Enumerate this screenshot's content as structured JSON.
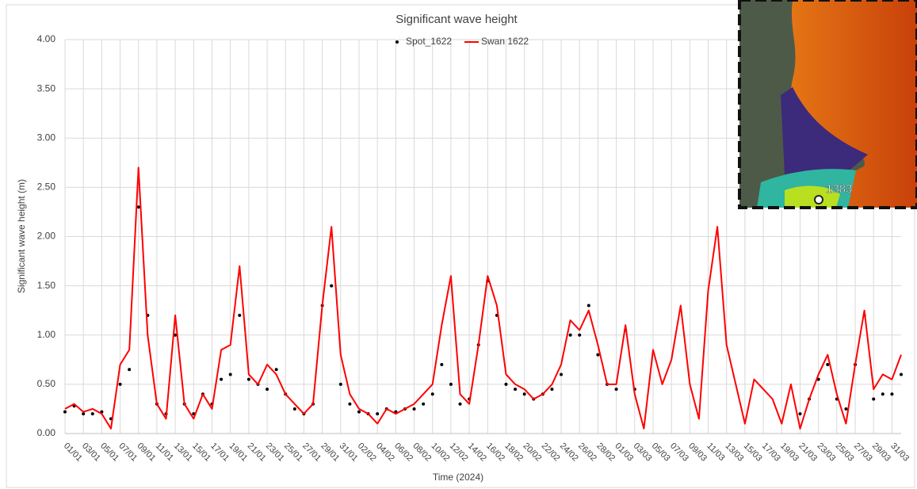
{
  "chart_data": {
    "type": "line",
    "title": "Significant wave height",
    "x_label": "Time (2024)",
    "y_label": "Significant wave height (m)",
    "x": [
      0,
      1,
      2,
      3,
      4,
      5,
      6,
      7,
      8,
      9,
      10,
      11,
      12,
      13,
      14,
      15,
      16,
      17,
      18,
      19,
      20,
      21,
      22,
      23,
      24,
      25,
      26,
      27,
      28,
      29,
      30,
      31,
      32,
      33,
      34,
      35,
      36,
      37,
      38,
      39,
      40,
      41,
      42,
      43,
      44,
      45,
      46,
      47,
      48,
      49,
      50,
      51,
      52,
      53,
      54,
      55,
      56,
      57,
      58,
      59,
      60,
      61,
      62,
      63,
      64,
      65,
      66,
      67,
      68,
      69,
      70,
      71,
      72,
      73,
      74,
      75,
      76,
      77,
      78,
      79,
      80,
      81,
      82,
      83,
      84,
      85,
      86,
      87,
      88,
      89,
      90,
      91
    ],
    "series": [
      {
        "name": "Spot_1622",
        "type": "scatter",
        "color": "#000000",
        "values": [
          0.22,
          0.28,
          0.2,
          0.2,
          0.22,
          0.15,
          0.5,
          0.65,
          2.3,
          1.2,
          0.3,
          0.2,
          1.0,
          0.3,
          0.2,
          0.4,
          0.3,
          0.55,
          0.6,
          1.2,
          0.55,
          0.5,
          0.45,
          0.65,
          0.4,
          0.25,
          0.2,
          0.3,
          1.3,
          1.5,
          0.5,
          0.3,
          0.22,
          0.2,
          0.2,
          0.25,
          0.22,
          0.25,
          0.25,
          0.3,
          0.4,
          0.7,
          0.5,
          0.3,
          0.35,
          0.9,
          1.55,
          1.2,
          0.5,
          0.45,
          0.4,
          0.35,
          0.4,
          0.45,
          0.6,
          1.0,
          1.0,
          1.3,
          0.8,
          0.5,
          0.45,
          1.05,
          0.45,
          null,
          null,
          null,
          null,
          null,
          null,
          null,
          null,
          null,
          null,
          null,
          null,
          null,
          null,
          null,
          null,
          null,
          0.2,
          0.35,
          0.55,
          0.7,
          0.35,
          0.25,
          0.7,
          1.2,
          0.35,
          0.4,
          0.4,
          0.6
        ]
      },
      {
        "name": "Swan 1622",
        "type": "line",
        "color": "#ff0000",
        "values": [
          0.25,
          0.3,
          0.22,
          0.25,
          0.2,
          0.05,
          0.7,
          0.85,
          2.7,
          1.0,
          0.3,
          0.15,
          1.2,
          0.3,
          0.15,
          0.4,
          0.25,
          0.85,
          0.9,
          1.7,
          0.6,
          0.5,
          0.7,
          0.6,
          0.4,
          0.3,
          0.2,
          0.3,
          1.3,
          2.1,
          0.8,
          0.4,
          0.25,
          0.2,
          0.1,
          0.25,
          0.2,
          0.25,
          0.3,
          0.4,
          0.5,
          1.1,
          1.6,
          0.4,
          0.3,
          0.9,
          1.6,
          1.3,
          0.6,
          0.5,
          0.45,
          0.35,
          0.4,
          0.5,
          0.7,
          1.15,
          1.05,
          1.25,
          0.9,
          0.5,
          0.5,
          1.1,
          0.4,
          0.05,
          0.85,
          0.5,
          0.75,
          1.3,
          0.5,
          0.15,
          1.45,
          2.1,
          0.9,
          0.5,
          0.1,
          0.55,
          0.45,
          0.35,
          0.1,
          0.5,
          0.05,
          0.35,
          0.6,
          0.8,
          0.4,
          0.1,
          0.7,
          1.25,
          0.45,
          0.6,
          0.55,
          0.8
        ]
      }
    ],
    "xlim": [
      0,
      91
    ],
    "ylim": [
      0,
      4
    ],
    "xticks": [
      {
        "value": 0,
        "label": "01/01"
      },
      {
        "value": 2,
        "label": "03/01"
      },
      {
        "value": 4,
        "label": "05/01"
      },
      {
        "value": 6,
        "label": "07/01"
      },
      {
        "value": 8,
        "label": "09/01"
      },
      {
        "value": 10,
        "label": "11/01"
      },
      {
        "value": 12,
        "label": "13/01"
      },
      {
        "value": 14,
        "label": "15/01"
      },
      {
        "value": 16,
        "label": "17/01"
      },
      {
        "value": 18,
        "label": "19/01"
      },
      {
        "value": 20,
        "label": "21/01"
      },
      {
        "value": 22,
        "label": "23/01"
      },
      {
        "value": 24,
        "label": "25/01"
      },
      {
        "value": 26,
        "label": "27/01"
      },
      {
        "value": 28,
        "label": "29/01"
      },
      {
        "value": 30,
        "label": "31/01"
      },
      {
        "value": 32,
        "label": "02/02"
      },
      {
        "value": 34,
        "label": "04/02"
      },
      {
        "value": 36,
        "label": "06/02"
      },
      {
        "value": 38,
        "label": "08/02"
      },
      {
        "value": 40,
        "label": "10/02"
      },
      {
        "value": 42,
        "label": "12/02"
      },
      {
        "value": 44,
        "label": "14/02"
      },
      {
        "value": 46,
        "label": "16/02"
      },
      {
        "value": 48,
        "label": "18/02"
      },
      {
        "value": 50,
        "label": "20/02"
      },
      {
        "value": 52,
        "label": "22/02"
      },
      {
        "value": 54,
        "label": "24/02"
      },
      {
        "value": 56,
        "label": "26/02"
      },
      {
        "value": 58,
        "label": "28/02"
      },
      {
        "value": 60,
        "label": "01/03"
      },
      {
        "value": 62,
        "label": "03/03"
      },
      {
        "value": 64,
        "label": "05/03"
      },
      {
        "value": 66,
        "label": "07/03"
      },
      {
        "value": 68,
        "label": "09/03"
      },
      {
        "value": 70,
        "label": "11/03"
      },
      {
        "value": 72,
        "label": "13/03"
      },
      {
        "value": 74,
        "label": "15/03"
      },
      {
        "value": 76,
        "label": "17/03"
      },
      {
        "value": 78,
        "label": "19/03"
      },
      {
        "value": 80,
        "label": "21/03"
      },
      {
        "value": 82,
        "label": "23/03"
      },
      {
        "value": 84,
        "label": "25/03"
      },
      {
        "value": 86,
        "label": "27/03"
      },
      {
        "value": 88,
        "label": "29/03"
      },
      {
        "value": 90,
        "label": "31/03"
      }
    ],
    "yticks": [
      {
        "value": 0,
        "label": "0.00"
      },
      {
        "value": 0.5,
        "label": "0.50"
      },
      {
        "value": 1,
        "label": "1.00"
      },
      {
        "value": 1.5,
        "label": "1.50"
      },
      {
        "value": 2,
        "label": "2.00"
      },
      {
        "value": 2.5,
        "label": "2.50"
      },
      {
        "value": 3,
        "label": "3.00"
      },
      {
        "value": 3.5,
        "label": "3.50"
      },
      {
        "value": 4,
        "label": "4.00"
      }
    ],
    "grid": true,
    "inset": {
      "label": "1383"
    }
  }
}
